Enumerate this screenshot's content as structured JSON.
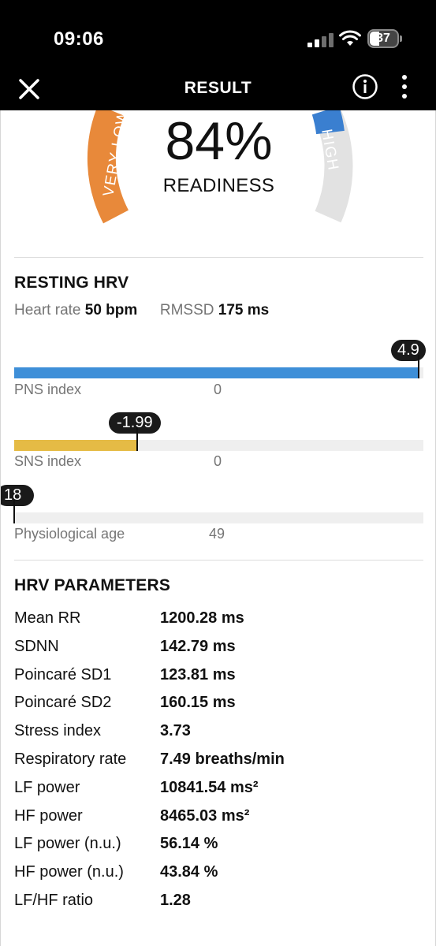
{
  "status_bar": {
    "time": "09:06",
    "battery": "37"
  },
  "app_bar": {
    "title": "RESULT"
  },
  "readiness": {
    "value": "84%",
    "label": "READINESS",
    "left_zone": "VERY LOW",
    "right_zone": "HIGH",
    "left_color": "#e8893a",
    "right_color": "#3a7fd0"
  },
  "resting_hrv": {
    "title": "RESTING HRV",
    "heart_rate_label": "Heart rate",
    "heart_rate_value": "50 bpm",
    "rmssd_label": "RMSSD",
    "rmssd_value": "175 ms",
    "bars": [
      {
        "label": "PNS index",
        "zero_label": "0",
        "value": "4.9",
        "color": "#3e8fd8"
      },
      {
        "label": "SNS index",
        "zero_label": "0",
        "value": "-1.99",
        "color": "#e5bb45"
      },
      {
        "label": "Physiological age",
        "zero_label": "49",
        "value": "18",
        "color": "#efefef"
      }
    ]
  },
  "hrv_parameters": {
    "title": "HRV PARAMETERS",
    "rows": [
      {
        "name": "Mean RR",
        "value": "1200.28 ms"
      },
      {
        "name": "SDNN",
        "value": "142.79 ms"
      },
      {
        "name": "Poincaré SD1",
        "value": "123.81 ms"
      },
      {
        "name": "Poincaré SD2",
        "value": "160.15 ms"
      },
      {
        "name": "Stress index",
        "value": "3.73"
      },
      {
        "name": "Respiratory rate",
        "value": "7.49 breaths/min"
      },
      {
        "name": "LF power",
        "value": "10841.54 ms²"
      },
      {
        "name": "HF power",
        "value": "8465.03 ms²"
      },
      {
        "name": "LF power (n.u.)",
        "value": "56.14 %"
      },
      {
        "name": "HF power (n.u.)",
        "value": "43.84 %"
      },
      {
        "name": "LF/HF ratio",
        "value": "1.28"
      }
    ]
  }
}
